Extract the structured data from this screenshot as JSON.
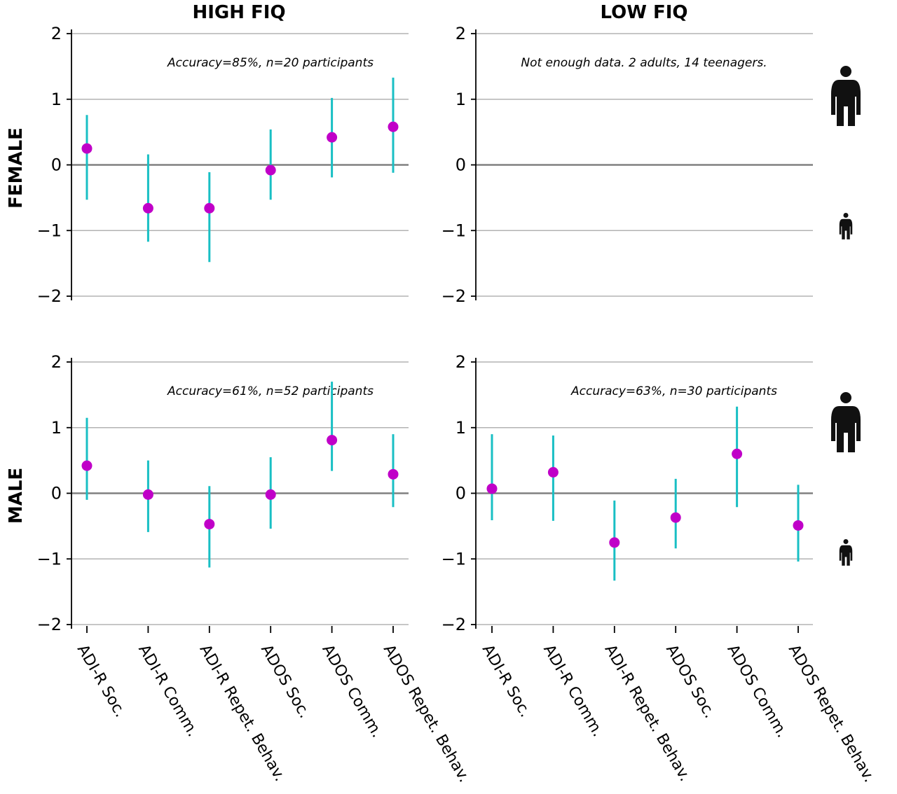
{
  "col_titles": [
    "HIGH FIQ",
    "LOW FIQ"
  ],
  "row_titles": [
    "FEMALE",
    "MALE"
  ],
  "icons": [
    "adult-person-icon",
    "child-person-icon"
  ],
  "colors": {
    "point": "#c000c8",
    "errorbar": "#19bfc4",
    "zero_line": "#808080",
    "grid": "#b3b3b3",
    "axis": "#000000"
  },
  "chart_data": [
    {
      "type": "scatter",
      "row": "FEMALE",
      "col": "HIGH FIQ",
      "annotation": "Accuracy=85%, n=20 participants",
      "categories": [
        "ADI-R Soc.",
        "ADI-R Comm.",
        "ADI-R Repet. Behav.",
        "ADOS Soc.",
        "ADOS Comm.",
        "ADOS Repet. Behav."
      ],
      "values": [
        0.25,
        -0.66,
        -0.66,
        -0.08,
        0.42,
        0.58
      ],
      "err_low": [
        -0.53,
        -1.17,
        -1.48,
        -0.53,
        -0.19,
        -0.12
      ],
      "err_high": [
        0.76,
        0.16,
        -0.11,
        0.54,
        1.02,
        1.33
      ],
      "ylim": [
        -2,
        2
      ],
      "yticks": [
        -2,
        -1,
        0,
        1,
        2
      ],
      "grid": true
    },
    {
      "type": "scatter",
      "row": "FEMALE",
      "col": "LOW FIQ",
      "annotation": "Not enough data. 2 adults, 14 teenagers.",
      "categories": [
        "ADI-R Soc.",
        "ADI-R Comm.",
        "ADI-R Repet. Behav.",
        "ADOS Soc.",
        "ADOS Comm.",
        "ADOS Repet. Behav."
      ],
      "values": [],
      "err_low": [],
      "err_high": [],
      "ylim": [
        -2,
        2
      ],
      "yticks": [
        -2,
        -1,
        0,
        1,
        2
      ],
      "grid": true
    },
    {
      "type": "scatter",
      "row": "MALE",
      "col": "HIGH FIQ",
      "annotation": "Accuracy=61%, n=52 participants",
      "categories": [
        "ADI-R Soc.",
        "ADI-R Comm.",
        "ADI-R Repet. Behav.",
        "ADOS Soc.",
        "ADOS Comm.",
        "ADOS Repet. Behav."
      ],
      "values": [
        0.42,
        -0.02,
        -0.47,
        -0.02,
        0.81,
        0.29
      ],
      "err_low": [
        -0.1,
        -0.59,
        -1.13,
        -0.54,
        0.34,
        -0.21
      ],
      "err_high": [
        1.15,
        0.5,
        0.11,
        0.55,
        1.7,
        0.9
      ],
      "ylim": [
        -2,
        2
      ],
      "yticks": [
        -2,
        -1,
        0,
        1,
        2
      ],
      "grid": true
    },
    {
      "type": "scatter",
      "row": "MALE",
      "col": "LOW FIQ",
      "annotation": "Accuracy=63%, n=30 participants",
      "categories": [
        "ADI-R Soc.",
        "ADI-R Comm.",
        "ADI-R Repet. Behav.",
        "ADOS Soc.",
        "ADOS Comm.",
        "ADOS Repet. Behav."
      ],
      "values": [
        0.07,
        0.32,
        -0.75,
        -0.37,
        0.6,
        -0.49
      ],
      "err_low": [
        -0.41,
        -0.42,
        -1.33,
        -0.84,
        -0.21,
        -1.04
      ],
      "err_high": [
        0.9,
        0.88,
        -0.11,
        0.22,
        1.32,
        0.13
      ],
      "ylim": [
        -2,
        2
      ],
      "yticks": [
        -2,
        -1,
        0,
        1,
        2
      ],
      "grid": true
    }
  ]
}
